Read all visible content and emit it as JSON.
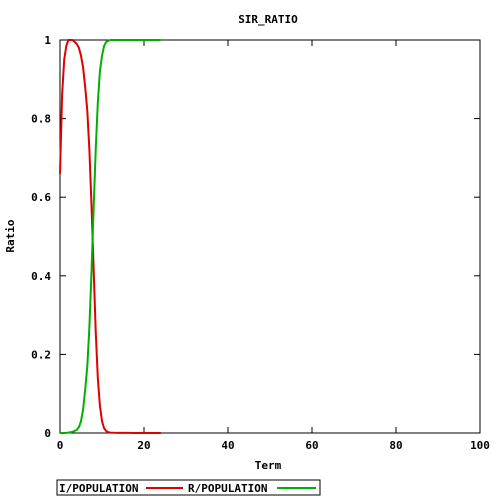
{
  "chart_data": {
    "type": "line",
    "title": "SIR_RATIO",
    "xlabel": "Term",
    "ylabel": "Ratio",
    "xlim": [
      0,
      100
    ],
    "ylim": [
      0,
      1
    ],
    "xticks": [
      "0",
      "20",
      "40",
      "60",
      "80",
      "100"
    ],
    "yticks": [
      "0",
      "0.2",
      "0.4",
      "0.6",
      "0.8",
      "1"
    ],
    "grid": false,
    "legend_position": "bottom-left",
    "series": [
      {
        "name": "I/POPULATION",
        "color": "#e00000",
        "x": [
          0,
          0.5,
          1,
          1.5,
          2,
          2.5,
          3,
          3.5,
          4,
          4.5,
          5,
          5.5,
          6,
          6.5,
          7,
          7.5,
          8,
          8.5,
          9,
          9.5,
          10,
          10.5,
          11,
          11.5,
          12,
          13,
          14,
          16,
          18,
          20,
          22,
          24
        ],
        "y": [
          0.66,
          0.86,
          0.95,
          0.985,
          1.0,
          1.0,
          1.0,
          0.995,
          0.99,
          0.98,
          0.96,
          0.93,
          0.88,
          0.82,
          0.72,
          0.58,
          0.42,
          0.26,
          0.14,
          0.07,
          0.03,
          0.012,
          0.005,
          0.002,
          0.001,
          0.0005,
          0.0003,
          0.0002,
          0.0001,
          0.0,
          0.0,
          0.0
        ]
      },
      {
        "name": "R/POPULATION",
        "color": "#00b000",
        "x": [
          0,
          1,
          2,
          3,
          4,
          4.5,
          5,
          5.5,
          6,
          6.5,
          7,
          7.5,
          8,
          8.5,
          9,
          9.5,
          10,
          10.5,
          11,
          11.5,
          12,
          13,
          14,
          16,
          18,
          20,
          22,
          24
        ],
        "y": [
          0.0,
          0.0,
          0.001,
          0.003,
          0.008,
          0.015,
          0.03,
          0.06,
          0.11,
          0.17,
          0.27,
          0.41,
          0.57,
          0.72,
          0.84,
          0.92,
          0.96,
          0.985,
          0.995,
          0.998,
          1.0,
          1.0,
          1.0,
          1.0,
          1.0,
          1.0,
          1.0,
          1.0
        ]
      }
    ]
  }
}
